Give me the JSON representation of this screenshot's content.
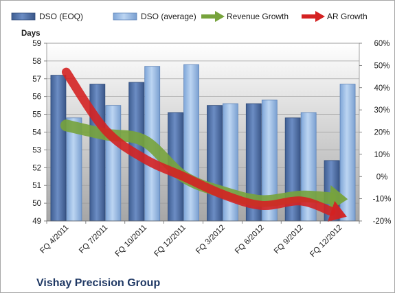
{
  "chart_data": {
    "type": "bar",
    "categories": [
      "FQ 4/2011",
      "FQ 7/2011",
      "FQ 10/2011",
      "FQ 12/2011",
      "FQ 3/2012",
      "FQ 6/2012",
      "FQ 9/2012",
      "FQ 12/2012"
    ],
    "series": [
      {
        "name": "DSO (EOQ)",
        "kind": "bar",
        "axis": "left",
        "color": "#4f6fa4",
        "values": [
          57.2,
          56.7,
          56.8,
          55.1,
          55.5,
          55.6,
          54.8,
          52.4
        ]
      },
      {
        "name": "DSO (average)",
        "kind": "bar",
        "axis": "left",
        "color": "#8fb4e3",
        "values": [
          54.8,
          55.5,
          57.7,
          57.8,
          55.6,
          55.8,
          55.1,
          56.7
        ]
      },
      {
        "name": "Revenue Growth",
        "kind": "trend-arrow",
        "axis": "right",
        "color": "#77a33c",
        "values": [
          0.23,
          0.19,
          0.16,
          0.0,
          -0.07,
          -0.11,
          -0.09,
          -0.1
        ]
      },
      {
        "name": "AR Growth",
        "kind": "trend-arrow",
        "axis": "right",
        "color": "#d42222",
        "values": [
          0.47,
          0.21,
          0.08,
          0.0,
          -0.08,
          -0.13,
          -0.11,
          -0.17
        ]
      }
    ],
    "ylabel": "Days",
    "ylim": [
      49,
      59
    ],
    "yticks": [
      "49",
      "50",
      "51",
      "52",
      "53",
      "54",
      "55",
      "56",
      "57",
      "58",
      "59"
    ],
    "y2lim": [
      -0.2,
      0.6
    ],
    "y2ticks": [
      "-20%",
      "-10%",
      "0%",
      "10%",
      "20%",
      "30%",
      "40%",
      "50%",
      "60%"
    ],
    "grid": true,
    "legend": "top",
    "footer": "Vishay Precision Group",
    "colors": {
      "plot_bg_top": "#ffffff",
      "plot_bg_bottom": "#a6a6a6",
      "footer": "#1f3864"
    }
  }
}
